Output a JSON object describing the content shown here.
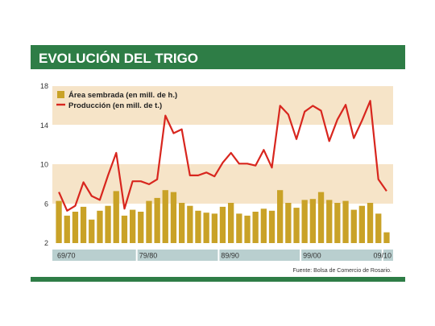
{
  "colors": {
    "header": "#2e7d46",
    "band": "#f6e4c8",
    "bar": "#c9a227",
    "line": "#d8261e",
    "periodStrip": "#b9cfcf",
    "bottomBar": "#2e7d46"
  },
  "chart_data": {
    "type": "bar+line",
    "title": "EVOLUCIÓN DEL TRIGO",
    "ylim": [
      2,
      18
    ],
    "yticks": [
      "2",
      "6",
      "10",
      "14",
      "18"
    ],
    "grid": false,
    "legend_position": "top-left",
    "period_labels": [
      "69/70",
      "79/80",
      "89/90",
      "99/00",
      "09/10"
    ],
    "series": [
      {
        "name": "Área sembrada (en mill. de h.)",
        "type": "bar",
        "values": [
          6.3,
          4.8,
          5.2,
          5.7,
          4.4,
          5.3,
          5.8,
          7.3,
          4.8,
          5.4,
          5.2,
          6.3,
          6.6,
          7.4,
          7.2,
          6.1,
          5.8,
          5.3,
          5.1,
          5.0,
          5.7,
          6.1,
          5.0,
          4.8,
          5.2,
          5.5,
          5.3,
          7.4,
          6.1,
          5.6,
          6.4,
          6.5,
          7.2,
          6.4,
          6.1,
          6.3,
          5.4,
          5.8,
          6.1,
          5.0,
          3.1
        ]
      },
      {
        "name": "Producción (en mill. de t.)",
        "type": "line",
        "values": [
          7.2,
          5.3,
          5.8,
          8.2,
          6.8,
          6.4,
          8.9,
          11.2,
          5.5,
          8.3,
          8.3,
          8.0,
          8.5,
          15.0,
          13.2,
          13.6,
          8.9,
          8.9,
          9.2,
          8.8,
          10.2,
          11.2,
          10.1,
          10.1,
          9.9,
          11.5,
          9.7,
          16.0,
          15.1,
          12.6,
          15.4,
          16.0,
          15.5,
          12.4,
          14.6,
          16.1,
          12.7,
          14.5,
          16.5,
          8.5,
          7.3
        ]
      }
    ]
  },
  "source": "Fuente: Bolsa de Comercio de Rosario."
}
